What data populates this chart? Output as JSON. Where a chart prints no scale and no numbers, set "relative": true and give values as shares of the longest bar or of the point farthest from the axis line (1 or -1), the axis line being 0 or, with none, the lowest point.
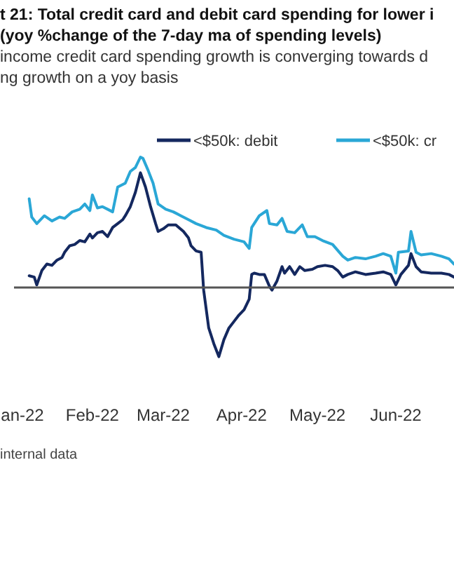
{
  "chart_data": {
    "type": "line",
    "title": "t 21: Total credit card and debit card spending for lower i\n(yoy %change of the 7-day ma of spending levels)",
    "subtitle": "income credit card spending growth is converging towards d\nng growth on a yoy basis",
    "relative": true,
    "legend": "top",
    "marker": "none",
    "line_style": "solid",
    "xlim": [
      "2022-01-01",
      "2022-06-24"
    ],
    "xticks": [
      {
        "value": "2022-01-01",
        "label": "an-22"
      },
      {
        "value": "2022-02-01",
        "label": "Feb-22"
      },
      {
        "value": "2022-03-01",
        "label": "Mar-22"
      },
      {
        "value": "2022-04-01",
        "label": "Apr-22"
      },
      {
        "value": "2022-05-01",
        "label": "May-22"
      },
      {
        "value": "2022-06-01",
        "label": "Jun-22"
      }
    ],
    "annotations": [
      "internal data"
    ],
    "series": [
      {
        "name": "<$50k: debit",
        "color": "#14285f",
        "x": [
          "2022-01-07",
          "2022-01-09",
          "2022-01-10",
          "2022-01-12",
          "2022-01-14",
          "2022-01-16",
          "2022-01-18",
          "2022-01-20",
          "2022-01-21",
          "2022-01-23",
          "2022-01-25",
          "2022-01-27",
          "2022-01-29",
          "2022-01-31",
          "2022-02-01",
          "2022-02-03",
          "2022-02-05",
          "2022-02-07",
          "2022-02-09",
          "2022-02-11",
          "2022-02-13",
          "2022-02-14",
          "2022-02-16",
          "2022-02-18",
          "2022-02-20",
          "2022-02-22",
          "2022-02-24",
          "2022-02-26",
          "2022-02-27",
          "2022-03-01",
          "2022-03-03",
          "2022-03-06",
          "2022-03-09",
          "2022-03-11",
          "2022-03-12",
          "2022-03-14",
          "2022-03-16",
          "2022-03-17",
          "2022-03-19",
          "2022-03-21",
          "2022-03-23",
          "2022-03-25",
          "2022-03-27",
          "2022-03-29",
          "2022-03-31",
          "2022-04-02",
          "2022-04-04",
          "2022-04-05",
          "2022-04-06",
          "2022-04-08",
          "2022-04-10",
          "2022-04-12",
          "2022-04-13",
          "2022-04-15",
          "2022-04-17",
          "2022-04-18",
          "2022-04-20",
          "2022-04-22",
          "2022-04-24",
          "2022-04-26",
          "2022-04-29",
          "2022-05-01",
          "2022-05-04",
          "2022-05-07",
          "2022-05-09",
          "2022-05-11",
          "2022-05-13",
          "2022-05-16",
          "2022-05-20",
          "2022-05-24",
          "2022-05-27",
          "2022-05-30",
          "2022-06-01",
          "2022-06-03",
          "2022-06-06",
          "2022-06-07",
          "2022-06-09",
          "2022-06-11",
          "2022-06-15",
          "2022-06-19",
          "2022-06-22",
          "2022-06-24"
        ],
        "values": [
          0.09,
          0.08,
          0.02,
          0.13,
          0.18,
          0.17,
          0.21,
          0.23,
          0.27,
          0.32,
          0.33,
          0.36,
          0.35,
          0.41,
          0.38,
          0.42,
          0.43,
          0.39,
          0.46,
          0.49,
          0.52,
          0.55,
          0.62,
          0.73,
          0.88,
          0.77,
          0.62,
          0.49,
          0.43,
          0.45,
          0.48,
          0.48,
          0.43,
          0.38,
          0.32,
          0.28,
          0.27,
          -0.02,
          -0.31,
          -0.43,
          -0.53,
          -0.4,
          -0.31,
          -0.26,
          -0.21,
          -0.17,
          -0.09,
          0.1,
          0.11,
          0.1,
          0.1,
          0.01,
          -0.02,
          0.05,
          0.16,
          0.11,
          0.16,
          0.1,
          0.16,
          0.13,
          0.14,
          0.16,
          0.17,
          0.16,
          0.13,
          0.08,
          0.1,
          0.12,
          0.1,
          0.11,
          0.12,
          0.1,
          0.02,
          0.1,
          0.17,
          0.26,
          0.16,
          0.12,
          0.11,
          0.11,
          0.1,
          0.08
        ]
      },
      {
        "name": "<$50k: cr",
        "color": "#2aa7d6",
        "x": [
          "2022-01-07",
          "2022-01-08",
          "2022-01-10",
          "2022-01-13",
          "2022-01-16",
          "2022-01-19",
          "2022-01-21",
          "2022-01-24",
          "2022-01-27",
          "2022-01-29",
          "2022-01-31",
          "2022-02-01",
          "2022-02-03",
          "2022-02-05",
          "2022-02-07",
          "2022-02-09",
          "2022-02-11",
          "2022-02-14",
          "2022-02-16",
          "2022-02-18",
          "2022-02-20",
          "2022-02-21",
          "2022-02-23",
          "2022-02-25",
          "2022-02-27",
          "2022-03-02",
          "2022-03-05",
          "2022-03-08",
          "2022-03-11",
          "2022-03-14",
          "2022-03-18",
          "2022-03-22",
          "2022-03-25",
          "2022-03-29",
          "2022-04-02",
          "2022-04-04",
          "2022-04-05",
          "2022-04-08",
          "2022-04-11",
          "2022-04-12",
          "2022-04-15",
          "2022-04-17",
          "2022-04-19",
          "2022-04-22",
          "2022-04-25",
          "2022-04-27",
          "2022-04-30",
          "2022-05-03",
          "2022-05-07",
          "2022-05-11",
          "2022-05-13",
          "2022-05-16",
          "2022-05-20",
          "2022-05-24",
          "2022-05-27",
          "2022-05-30",
          "2022-06-01",
          "2022-06-02",
          "2022-06-06",
          "2022-06-07",
          "2022-06-09",
          "2022-06-11",
          "2022-06-15",
          "2022-06-19",
          "2022-06-22",
          "2022-06-24"
        ],
        "values": [
          0.68,
          0.54,
          0.49,
          0.55,
          0.51,
          0.54,
          0.53,
          0.58,
          0.6,
          0.64,
          0.59,
          0.71,
          0.61,
          0.62,
          0.6,
          0.58,
          0.77,
          0.8,
          0.89,
          0.92,
          1.0,
          0.99,
          0.9,
          0.8,
          0.64,
          0.6,
          0.58,
          0.55,
          0.52,
          0.49,
          0.46,
          0.44,
          0.4,
          0.37,
          0.35,
          0.3,
          0.46,
          0.55,
          0.59,
          0.49,
          0.48,
          0.53,
          0.43,
          0.42,
          0.48,
          0.39,
          0.39,
          0.36,
          0.33,
          0.24,
          0.21,
          0.23,
          0.22,
          0.24,
          0.26,
          0.24,
          0.11,
          0.27,
          0.28,
          0.43,
          0.27,
          0.25,
          0.26,
          0.24,
          0.22,
          0.18
        ]
      }
    ]
  }
}
